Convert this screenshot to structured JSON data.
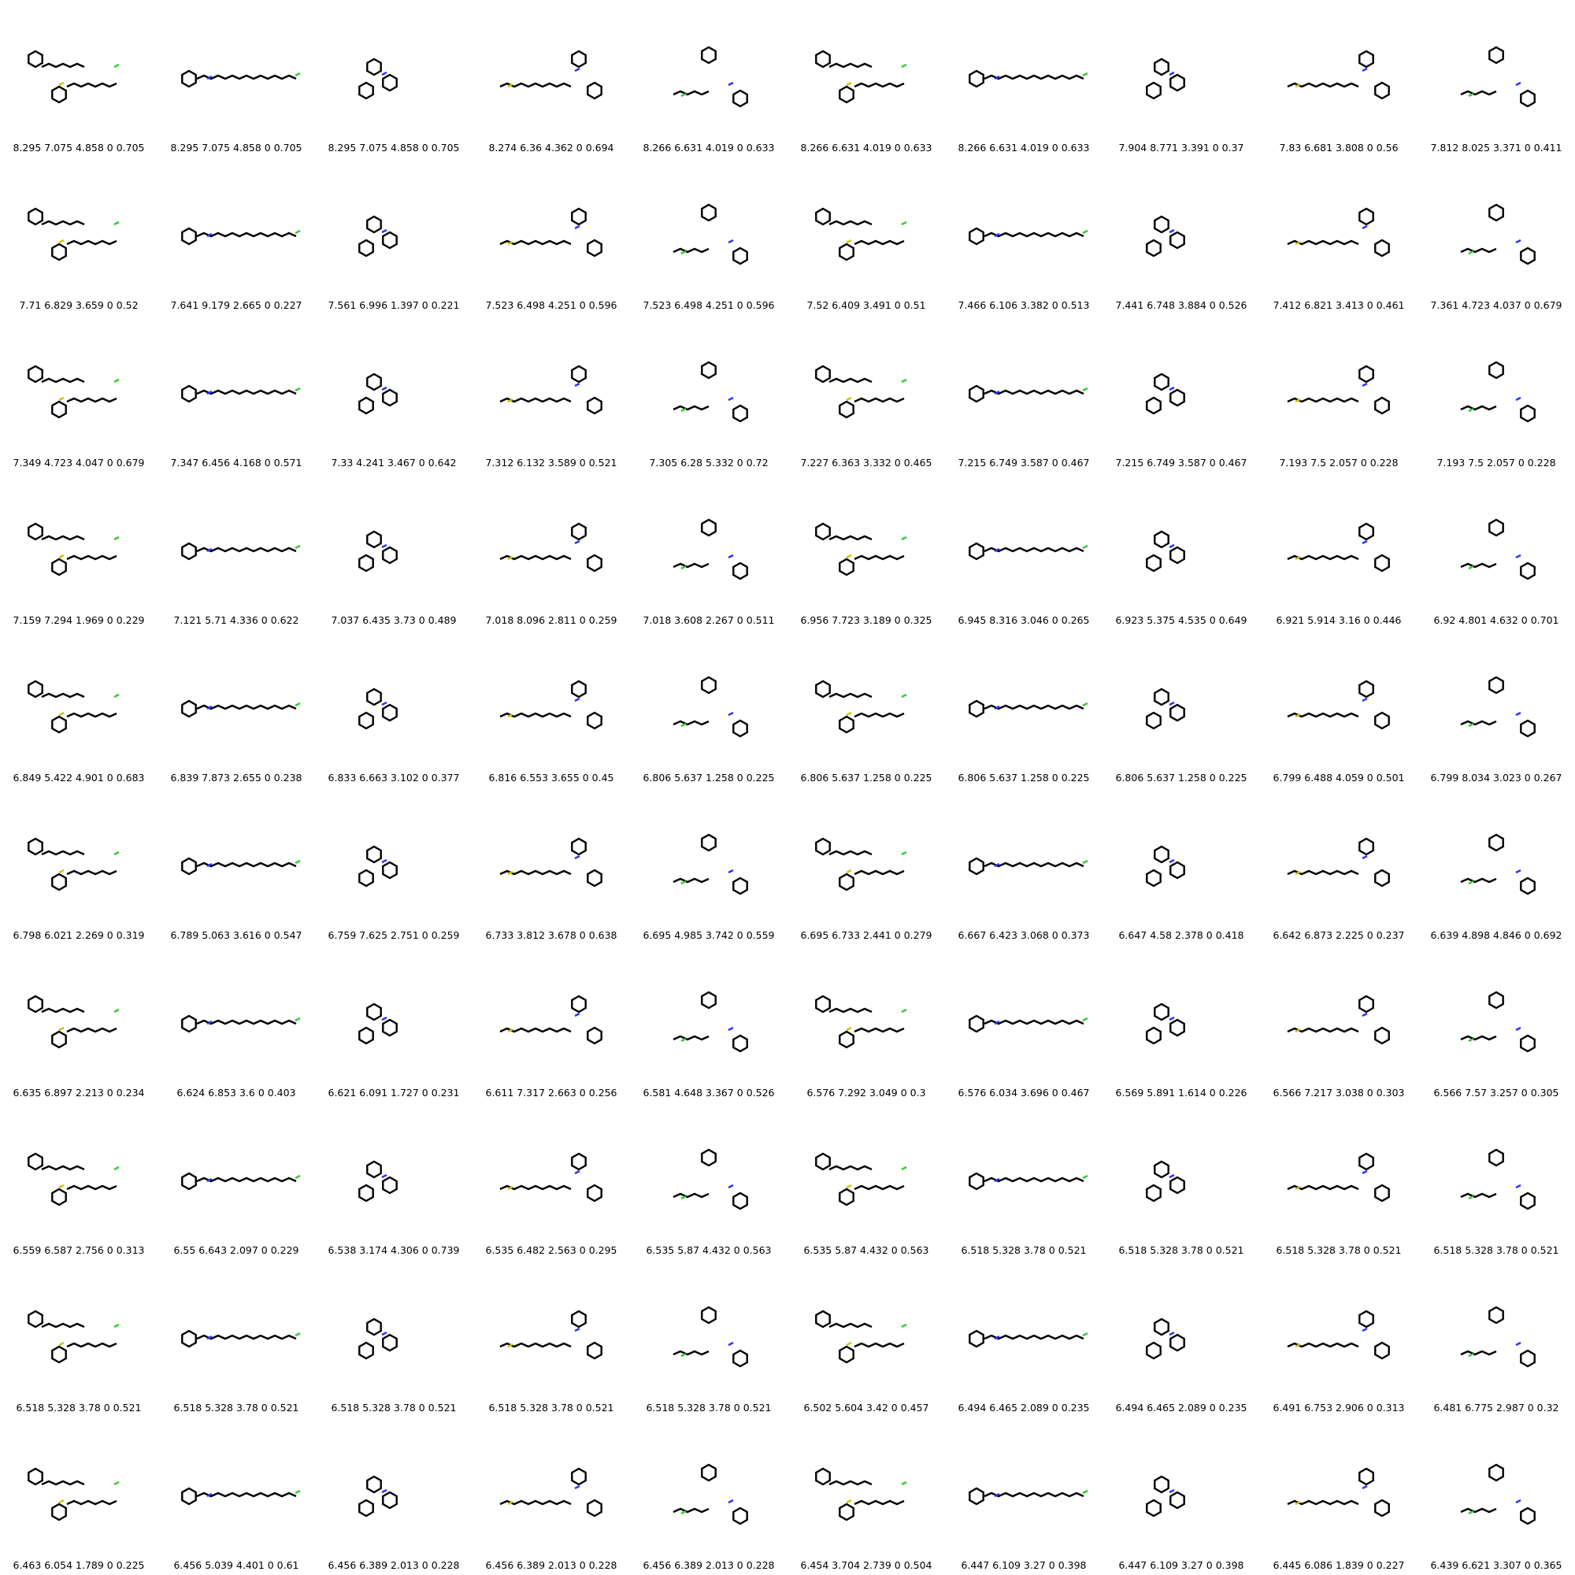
{
  "captions": [
    "8.295 7.075 4.858 0 0.705",
    "8.295 7.075 4.858 0 0.705",
    "8.295 7.075 4.858 0 0.705",
    "8.274 6.36 4.362 0 0.694",
    "8.266 6.631 4.019 0 0.633",
    "8.266 6.631 4.019 0 0.633",
    "8.266 6.631 4.019 0 0.633",
    "7.904 8.771 3.391 0 0.37",
    "7.83 6.681 3.808 0 0.56",
    "7.812 8.025 3.371 0 0.411",
    "7.71 6.829 3.659 0 0.52",
    "7.641 9.179 2.665 0 0.227",
    "7.561 6.996 1.397 0 0.221",
    "7.523 6.498 4.251 0 0.596",
    "7.523 6.498 4.251 0 0.596",
    "7.52 6.409 3.491 0 0.51",
    "7.466 6.106 3.382 0 0.513",
    "7.441 6.748 3.884 0 0.526",
    "7.412 6.821 3.413 0 0.461",
    "7.361 4.723 4.037 0 0.679",
    "7.349 4.723 4.047 0 0.679",
    "7.347 6.456 4.168 0 0.571",
    "7.33 4.241 3.467 0 0.642",
    "7.312 6.132 3.589 0 0.521",
    "7.305 6.28 5.332 0 0.72",
    "7.227 6.363 3.332 0 0.465",
    "7.215 6.749 3.587 0 0.467",
    "7.215 6.749 3.587 0 0.467",
    "7.193 7.5 2.057 0 0.228",
    "7.193 7.5 2.057 0 0.228",
    "7.159 7.294 1.969 0 0.229",
    "7.121 5.71 4.336 0 0.622",
    "7.037 6.435 3.73 0 0.489",
    "7.018 8.096 2.811 0 0.259",
    "7.018 3.608 2.267 0 0.511",
    "6.956 7.723 3.189 0 0.325",
    "6.945 8.316 3.046 0 0.265",
    "6.923 5.375 4.535 0 0.649",
    "6.921 5.914 3.16 0 0.446",
    "6.92 4.801 4.632 0 0.701",
    "6.849 5.422 4.901 0 0.683",
    "6.839 7.873 2.655 0 0.238",
    "6.833 6.663 3.102 0 0.377",
    "6.816 6.553 3.655 0 0.45",
    "6.806 5.637 1.258 0 0.225",
    "6.806 5.637 1.258 0 0.225",
    "6.806 5.637 1.258 0 0.225",
    "6.806 5.637 1.258 0 0.225",
    "6.799 6.488 4.059 0 0.501",
    "6.799 8.034 3.023 0 0.267",
    "6.798 6.021 2.269 0 0.319",
    "6.789 5.063 3.616 0 0.547",
    "6.759 7.625 2.751 0 0.259",
    "6.733 3.812 3.678 0 0.638",
    "6.695 4.985 3.742 0 0.559",
    "6.695 6.733 2.441 0 0.279",
    "6.667 6.423 3.068 0 0.373",
    "6.647 4.58 2.378 0 0.418",
    "6.642 6.873 2.225 0 0.237",
    "6.639 4.898 4.846 0 0.692",
    "6.635 6.897 2.213 0 0.234",
    "6.624 6.853 3.6 0 0.403",
    "6.621 6.091 1.727 0 0.231",
    "6.611 7.317 2.663 0 0.256",
    "6.581 4.648 3.367 0 0.526",
    "6.576 7.292 3.049 0 0.3",
    "6.576 6.034 3.696 0 0.467",
    "6.569 5.891 1.614 0 0.226",
    "6.566 7.217 3.038 0 0.303",
    "6.566 7.57 3.257 0 0.305",
    "6.559 6.587 2.756 0 0.313",
    "6.55 6.643 2.097 0 0.229",
    "6.538 3.174 4.306 0 0.739",
    "6.535 6.482 2.563 0 0.295",
    "6.535 5.87 4.432 0 0.563",
    "6.535 5.87 4.432 0 0.563",
    "6.518 5.328 3.78 0 0.521",
    "6.518 5.328 3.78 0 0.521",
    "6.518 5.328 3.78 0 0.521",
    "6.518 5.328 3.78 0 0.521",
    "6.518 5.328 3.78 0 0.521",
    "6.518 5.328 3.78 0 0.521",
    "6.518 5.328 3.78 0 0.521",
    "6.518 5.328 3.78 0 0.521",
    "6.518 5.328 3.78 0 0.521",
    "6.502 5.604 3.42 0 0.457",
    "6.494 6.465 2.089 0 0.235",
    "6.494 6.465 2.089 0 0.235",
    "6.491 6.753 2.906 0 0.313",
    "6.481 6.775 2.987 0 0.32",
    "6.463 6.054 1.789 0 0.225",
    "6.456 5.039 4.401 0 0.61",
    "6.456 6.389 2.013 0 0.228",
    "6.456 6.389 2.013 0 0.228",
    "6.456 6.389 2.013 0 0.228",
    "6.454 3.704 2.739 0 0.504",
    "6.447 6.109 3.27 0 0.398",
    "6.447 6.109 3.27 0 0.398",
    "6.445 6.086 1.839 0 0.227",
    "6.439 6.621 3.307 0 0.365"
  ],
  "atom_colors": {
    "carbon": "#000000",
    "nitrogen": "#3030ff",
    "sulfur": "#c8c800",
    "oxygen": "#ff2020",
    "fluorine": "#33cc33"
  }
}
